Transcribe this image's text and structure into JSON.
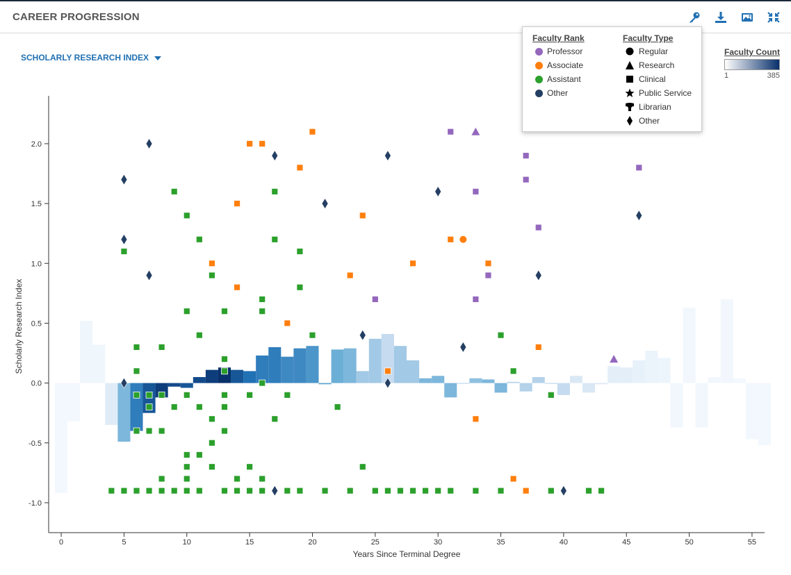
{
  "header": {
    "title": "CAREER PROGRESSION"
  },
  "toolbar": {
    "icons": [
      "key-icon",
      "download-icon",
      "image-icon",
      "collapse-icon"
    ]
  },
  "metric_selector": {
    "label": "SCHOLARLY RESEARCH INDEX"
  },
  "legend": {
    "rank_title": "Faculty Rank",
    "ranks": [
      {
        "label": "Professor",
        "color": "#9467bd"
      },
      {
        "label": "Associate",
        "color": "#ff7f0e"
      },
      {
        "label": "Assistant",
        "color": "#2ca02c"
      },
      {
        "label": "Other",
        "color": "#243f63"
      }
    ],
    "type_title": "Faculty Type",
    "types": [
      {
        "label": "Regular",
        "shape": "circle"
      },
      {
        "label": "Research",
        "shape": "triangle"
      },
      {
        "label": "Clinical",
        "shape": "square"
      },
      {
        "label": "Public Service",
        "shape": "star"
      },
      {
        "label": "Librarian",
        "shape": "librarian"
      },
      {
        "label": "Other",
        "shape": "diamond"
      }
    ]
  },
  "count_legend": {
    "title": "Faculty Count",
    "min": "1",
    "max": "385"
  },
  "chart_data": {
    "type": "scatter",
    "title": "CAREER PROGRESSION",
    "xlabel": "Years Since Terminal Degree",
    "ylabel": "Scholarly Research Index",
    "xlim": [
      -1,
      56
    ],
    "ylim": [
      -1.25,
      2.4
    ],
    "xticks": [
      0,
      5,
      10,
      15,
      20,
      25,
      30,
      35,
      40,
      45,
      50,
      55
    ],
    "yticks": [
      -1.0,
      -0.5,
      0.0,
      0.5,
      1.0,
      1.5,
      2.0
    ],
    "ytick_labels": [
      "-1.0",
      "-0.5",
      "0.0",
      "0.5",
      "1.0",
      "1.5",
      "2.0"
    ],
    "bars": [
      {
        "x": 0,
        "v": -0.92,
        "c": 0.02
      },
      {
        "x": 1,
        "v": -0.32,
        "c": 0.02
      },
      {
        "x": 2,
        "v": 0.52,
        "c": 0.04
      },
      {
        "x": 3,
        "v": 0.32,
        "c": 0.04
      },
      {
        "x": 4,
        "v": -0.35,
        "c": 0.12
      },
      {
        "x": 5,
        "v": -0.49,
        "c": 0.45
      },
      {
        "x": 6,
        "v": -0.4,
        "c": 0.7
      },
      {
        "x": 7,
        "v": -0.25,
        "c": 0.85
      },
      {
        "x": 8,
        "v": -0.12,
        "c": 0.95
      },
      {
        "x": 9,
        "v": -0.03,
        "c": 0.9
      },
      {
        "x": 10,
        "v": -0.04,
        "c": 0.85
      },
      {
        "x": 11,
        "v": 0.05,
        "c": 0.9
      },
      {
        "x": 12,
        "v": 0.11,
        "c": 0.95
      },
      {
        "x": 13,
        "v": 0.13,
        "c": 1.0
      },
      {
        "x": 14,
        "v": 0.11,
        "c": 0.85
      },
      {
        "x": 15,
        "v": 0.1,
        "c": 0.75
      },
      {
        "x": 16,
        "v": 0.23,
        "c": 0.7
      },
      {
        "x": 17,
        "v": 0.3,
        "c": 0.7
      },
      {
        "x": 18,
        "v": 0.22,
        "c": 0.65
      },
      {
        "x": 19,
        "v": 0.29,
        "c": 0.65
      },
      {
        "x": 20,
        "v": 0.31,
        "c": 0.6
      },
      {
        "x": 21,
        "v": -0.01,
        "c": 0.55
      },
      {
        "x": 22,
        "v": 0.28,
        "c": 0.5
      },
      {
        "x": 23,
        "v": 0.29,
        "c": 0.45
      },
      {
        "x": 24,
        "v": 0.1,
        "c": 0.35
      },
      {
        "x": 25,
        "v": 0.37,
        "c": 0.35
      },
      {
        "x": 26,
        "v": 0.41,
        "c": 0.25
      },
      {
        "x": 27,
        "v": 0.31,
        "c": 0.35
      },
      {
        "x": 28,
        "v": 0.19,
        "c": 0.35
      },
      {
        "x": 29,
        "v": 0.04,
        "c": 0.45
      },
      {
        "x": 30,
        "v": 0.06,
        "c": 0.45
      },
      {
        "x": 31,
        "v": -0.12,
        "c": 0.45
      },
      {
        "x": 32,
        "v": 0.0,
        "c": 0.3
      },
      {
        "x": 33,
        "v": 0.04,
        "c": 0.4
      },
      {
        "x": 34,
        "v": 0.03,
        "c": 0.45
      },
      {
        "x": 35,
        "v": -0.08,
        "c": 0.45
      },
      {
        "x": 36,
        "v": 0.01,
        "c": 0.3
      },
      {
        "x": 37,
        "v": -0.07,
        "c": 0.3
      },
      {
        "x": 38,
        "v": 0.05,
        "c": 0.3
      },
      {
        "x": 39,
        "v": 0.0,
        "c": 0.3
      },
      {
        "x": 40,
        "v": -0.1,
        "c": 0.25
      },
      {
        "x": 41,
        "v": 0.06,
        "c": 0.15
      },
      {
        "x": 42,
        "v": -0.08,
        "c": 0.15
      },
      {
        "x": 43,
        "v": -0.01,
        "c": 0.15
      },
      {
        "x": 44,
        "v": 0.14,
        "c": 0.1
      },
      {
        "x": 45,
        "v": 0.13,
        "c": 0.1
      },
      {
        "x": 46,
        "v": 0.19,
        "c": 0.08
      },
      {
        "x": 47,
        "v": 0.27,
        "c": 0.06
      },
      {
        "x": 48,
        "v": 0.21,
        "c": 0.05
      },
      {
        "x": 49,
        "v": -0.37,
        "c": 0.03
      },
      {
        "x": 50,
        "v": 0.63,
        "c": 0.03
      },
      {
        "x": 51,
        "v": -0.37,
        "c": 0.03
      },
      {
        "x": 52,
        "v": 0.05,
        "c": 0.03
      },
      {
        "x": 53,
        "v": 0.7,
        "c": 0.03
      },
      {
        "x": 54,
        "v": 0.04,
        "c": 0.02
      },
      {
        "x": 55,
        "v": -0.47,
        "c": 0.02
      },
      {
        "x": 56,
        "v": -0.52,
        "c": 0.02
      }
    ],
    "points": [
      {
        "x": 5,
        "y": 1.7,
        "r": "Other",
        "t": "diamond"
      },
      {
        "x": 5,
        "y": 1.2,
        "r": "Other",
        "t": "diamond"
      },
      {
        "x": 5,
        "y": 0.0,
        "r": "Other",
        "t": "diamond"
      },
      {
        "x": 7,
        "y": 2.0,
        "r": "Other",
        "t": "diamond"
      },
      {
        "x": 7,
        "y": 0.9,
        "r": "Other",
        "t": "diamond"
      },
      {
        "x": 17,
        "y": 1.9,
        "r": "Other",
        "t": "diamond"
      },
      {
        "x": 17,
        "y": -0.9,
        "r": "Other",
        "t": "diamond"
      },
      {
        "x": 21,
        "y": 1.5,
        "r": "Other",
        "t": "diamond"
      },
      {
        "x": 24,
        "y": 0.4,
        "r": "Other",
        "t": "diamond"
      },
      {
        "x": 26,
        "y": 1.9,
        "r": "Other",
        "t": "diamond"
      },
      {
        "x": 26,
        "y": 0.0,
        "r": "Other",
        "t": "diamond"
      },
      {
        "x": 30,
        "y": 1.6,
        "r": "Other",
        "t": "diamond"
      },
      {
        "x": 32,
        "y": 0.3,
        "r": "Other",
        "t": "diamond"
      },
      {
        "x": 38,
        "y": 0.9,
        "r": "Other",
        "t": "diamond"
      },
      {
        "x": 40,
        "y": -0.9,
        "r": "Other",
        "t": "diamond"
      },
      {
        "x": 46,
        "y": 1.4,
        "r": "Other",
        "t": "diamond"
      },
      {
        "x": 31,
        "y": 2.1,
        "r": "Professor",
        "t": "square"
      },
      {
        "x": 33,
        "y": 2.1,
        "r": "Professor",
        "t": "triangle"
      },
      {
        "x": 33,
        "y": 1.6,
        "r": "Professor",
        "t": "square"
      },
      {
        "x": 33,
        "y": 0.7,
        "r": "Professor",
        "t": "square"
      },
      {
        "x": 34,
        "y": 0.9,
        "r": "Professor",
        "t": "square"
      },
      {
        "x": 37,
        "y": 1.9,
        "r": "Professor",
        "t": "square"
      },
      {
        "x": 37,
        "y": 1.7,
        "r": "Professor",
        "t": "square"
      },
      {
        "x": 38,
        "y": 1.3,
        "r": "Professor",
        "t": "square"
      },
      {
        "x": 25,
        "y": 0.7,
        "r": "Professor",
        "t": "square"
      },
      {
        "x": 44,
        "y": 0.2,
        "r": "Professor",
        "t": "triangle"
      },
      {
        "x": 46,
        "y": 1.8,
        "r": "Professor",
        "t": "square"
      },
      {
        "x": 12,
        "y": 1.0,
        "r": "Associate",
        "t": "square"
      },
      {
        "x": 14,
        "y": 1.5,
        "r": "Associate",
        "t": "square"
      },
      {
        "x": 14,
        "y": 0.8,
        "r": "Associate",
        "t": "square"
      },
      {
        "x": 15,
        "y": 2.0,
        "r": "Associate",
        "t": "square"
      },
      {
        "x": 16,
        "y": 2.0,
        "r": "Associate",
        "t": "square"
      },
      {
        "x": 18,
        "y": 0.5,
        "r": "Associate",
        "t": "square"
      },
      {
        "x": 19,
        "y": 1.8,
        "r": "Associate",
        "t": "square"
      },
      {
        "x": 20,
        "y": 2.1,
        "r": "Associate",
        "t": "square"
      },
      {
        "x": 23,
        "y": 0.9,
        "r": "Associate",
        "t": "square"
      },
      {
        "x": 24,
        "y": 1.4,
        "r": "Associate",
        "t": "square"
      },
      {
        "x": 26,
        "y": 0.1,
        "r": "Associate",
        "t": "square"
      },
      {
        "x": 28,
        "y": 1.0,
        "r": "Associate",
        "t": "square"
      },
      {
        "x": 31,
        "y": 1.2,
        "r": "Associate",
        "t": "square"
      },
      {
        "x": 32,
        "y": 1.2,
        "r": "Associate",
        "t": "circle"
      },
      {
        "x": 33,
        "y": -0.3,
        "r": "Associate",
        "t": "square"
      },
      {
        "x": 34,
        "y": 1.0,
        "r": "Associate",
        "t": "square"
      },
      {
        "x": 36,
        "y": -0.8,
        "r": "Associate",
        "t": "square"
      },
      {
        "x": 37,
        "y": -0.9,
        "r": "Associate",
        "t": "square"
      },
      {
        "x": 38,
        "y": 0.3,
        "r": "Associate",
        "t": "square"
      },
      {
        "x": 5,
        "y": 1.1,
        "r": "Assistant",
        "t": "square"
      },
      {
        "x": 6,
        "y": 0.3,
        "r": "Assistant",
        "t": "square"
      },
      {
        "x": 6,
        "y": 0.1,
        "r": "Assistant",
        "t": "square"
      },
      {
        "x": 6,
        "y": -0.1,
        "r": "Assistant",
        "t": "square"
      },
      {
        "x": 6,
        "y": -0.4,
        "r": "Assistant",
        "t": "square"
      },
      {
        "x": 7,
        "y": -0.1,
        "r": "Assistant",
        "t": "square"
      },
      {
        "x": 7,
        "y": -0.2,
        "r": "Assistant",
        "t": "square"
      },
      {
        "x": 7,
        "y": -0.4,
        "r": "Assistant",
        "t": "square"
      },
      {
        "x": 8,
        "y": 0.3,
        "r": "Assistant",
        "t": "square"
      },
      {
        "x": 8,
        "y": -0.1,
        "r": "Assistant",
        "t": "square"
      },
      {
        "x": 8,
        "y": -0.4,
        "r": "Assistant",
        "t": "square"
      },
      {
        "x": 8,
        "y": -0.8,
        "r": "Assistant",
        "t": "square"
      },
      {
        "x": 9,
        "y": 1.6,
        "r": "Assistant",
        "t": "square"
      },
      {
        "x": 9,
        "y": -0.2,
        "r": "Assistant",
        "t": "square"
      },
      {
        "x": 10,
        "y": 1.4,
        "r": "Assistant",
        "t": "square"
      },
      {
        "x": 10,
        "y": 0.6,
        "r": "Assistant",
        "t": "square"
      },
      {
        "x": 10,
        "y": -0.1,
        "r": "Assistant",
        "t": "square"
      },
      {
        "x": 10,
        "y": -0.6,
        "r": "Assistant",
        "t": "square"
      },
      {
        "x": 10,
        "y": -0.7,
        "r": "Assistant",
        "t": "square"
      },
      {
        "x": 10,
        "y": -0.8,
        "r": "Assistant",
        "t": "square"
      },
      {
        "x": 11,
        "y": 1.2,
        "r": "Assistant",
        "t": "square"
      },
      {
        "x": 11,
        "y": 0.4,
        "r": "Assistant",
        "t": "square"
      },
      {
        "x": 11,
        "y": -0.2,
        "r": "Assistant",
        "t": "square"
      },
      {
        "x": 11,
        "y": -0.6,
        "r": "Assistant",
        "t": "square"
      },
      {
        "x": 12,
        "y": 0.9,
        "r": "Assistant",
        "t": "square"
      },
      {
        "x": 12,
        "y": -0.3,
        "r": "Assistant",
        "t": "square"
      },
      {
        "x": 12,
        "y": -0.5,
        "r": "Assistant",
        "t": "square"
      },
      {
        "x": 12,
        "y": -0.7,
        "r": "Assistant",
        "t": "square"
      },
      {
        "x": 13,
        "y": 0.6,
        "r": "Assistant",
        "t": "square"
      },
      {
        "x": 13,
        "y": 0.2,
        "r": "Assistant",
        "t": "square"
      },
      {
        "x": 13,
        "y": 0.1,
        "r": "Assistant",
        "t": "square"
      },
      {
        "x": 13,
        "y": -0.1,
        "r": "Assistant",
        "t": "square"
      },
      {
        "x": 13,
        "y": -0.2,
        "r": "Assistant",
        "t": "square"
      },
      {
        "x": 13,
        "y": -0.4,
        "r": "Assistant",
        "t": "square"
      },
      {
        "x": 14,
        "y": -0.8,
        "r": "Assistant",
        "t": "square"
      },
      {
        "x": 15,
        "y": -0.1,
        "r": "Assistant",
        "t": "square"
      },
      {
        "x": 15,
        "y": -0.7,
        "r": "Assistant",
        "t": "square"
      },
      {
        "x": 16,
        "y": 0.7,
        "r": "Assistant",
        "t": "square"
      },
      {
        "x": 16,
        "y": 0.6,
        "r": "Assistant",
        "t": "square"
      },
      {
        "x": 16,
        "y": 0.0,
        "r": "Assistant",
        "t": "square"
      },
      {
        "x": 16,
        "y": -0.8,
        "r": "Assistant",
        "t": "square"
      },
      {
        "x": 17,
        "y": 1.6,
        "r": "Assistant",
        "t": "square"
      },
      {
        "x": 17,
        "y": 1.2,
        "r": "Assistant",
        "t": "square"
      },
      {
        "x": 17,
        "y": -0.3,
        "r": "Assistant",
        "t": "square"
      },
      {
        "x": 18,
        "y": -0.1,
        "r": "Assistant",
        "t": "square"
      },
      {
        "x": 19,
        "y": 1.1,
        "r": "Assistant",
        "t": "square"
      },
      {
        "x": 19,
        "y": 0.8,
        "r": "Assistant",
        "t": "square"
      },
      {
        "x": 20,
        "y": 0.4,
        "r": "Assistant",
        "t": "square"
      },
      {
        "x": 22,
        "y": -0.2,
        "r": "Assistant",
        "t": "square"
      },
      {
        "x": 24,
        "y": -0.7,
        "r": "Assistant",
        "t": "square"
      },
      {
        "x": 35,
        "y": 0.4,
        "r": "Assistant",
        "t": "square"
      },
      {
        "x": 36,
        "y": 0.1,
        "r": "Assistant",
        "t": "square"
      },
      {
        "x": 39,
        "y": -0.1,
        "r": "Assistant",
        "t": "square"
      },
      {
        "x": 4,
        "y": -0.9,
        "r": "Assistant",
        "t": "square"
      },
      {
        "x": 5,
        "y": -0.9,
        "r": "Assistant",
        "t": "square"
      },
      {
        "x": 6,
        "y": -0.9,
        "r": "Assistant",
        "t": "square"
      },
      {
        "x": 7,
        "y": -0.9,
        "r": "Assistant",
        "t": "square"
      },
      {
        "x": 8,
        "y": -0.9,
        "r": "Assistant",
        "t": "square"
      },
      {
        "x": 9,
        "y": -0.9,
        "r": "Assistant",
        "t": "square"
      },
      {
        "x": 10,
        "y": -0.9,
        "r": "Assistant",
        "t": "square"
      },
      {
        "x": 11,
        "y": -0.9,
        "r": "Assistant",
        "t": "square"
      },
      {
        "x": 13,
        "y": -0.9,
        "r": "Assistant",
        "t": "square"
      },
      {
        "x": 14,
        "y": -0.9,
        "r": "Assistant",
        "t": "square"
      },
      {
        "x": 15,
        "y": -0.9,
        "r": "Assistant",
        "t": "square"
      },
      {
        "x": 16,
        "y": -0.9,
        "r": "Assistant",
        "t": "square"
      },
      {
        "x": 18,
        "y": -0.9,
        "r": "Assistant",
        "t": "square"
      },
      {
        "x": 19,
        "y": -0.9,
        "r": "Assistant",
        "t": "square"
      },
      {
        "x": 21,
        "y": -0.9,
        "r": "Assistant",
        "t": "square"
      },
      {
        "x": 23,
        "y": -0.9,
        "r": "Assistant",
        "t": "square"
      },
      {
        "x": 25,
        "y": -0.9,
        "r": "Assistant",
        "t": "square"
      },
      {
        "x": 26,
        "y": -0.9,
        "r": "Assistant",
        "t": "square"
      },
      {
        "x": 27,
        "y": -0.9,
        "r": "Assistant",
        "t": "square"
      },
      {
        "x": 28,
        "y": -0.9,
        "r": "Assistant",
        "t": "square"
      },
      {
        "x": 29,
        "y": -0.9,
        "r": "Assistant",
        "t": "square"
      },
      {
        "x": 30,
        "y": -0.9,
        "r": "Assistant",
        "t": "square"
      },
      {
        "x": 31,
        "y": -0.9,
        "r": "Assistant",
        "t": "square"
      },
      {
        "x": 33,
        "y": -0.9,
        "r": "Assistant",
        "t": "square"
      },
      {
        "x": 35,
        "y": -0.9,
        "r": "Assistant",
        "t": "square"
      },
      {
        "x": 39,
        "y": -0.9,
        "r": "Assistant",
        "t": "square"
      },
      {
        "x": 42,
        "y": -0.9,
        "r": "Assistant",
        "t": "square"
      },
      {
        "x": 43,
        "y": -0.9,
        "r": "Assistant",
        "t": "square"
      }
    ]
  }
}
